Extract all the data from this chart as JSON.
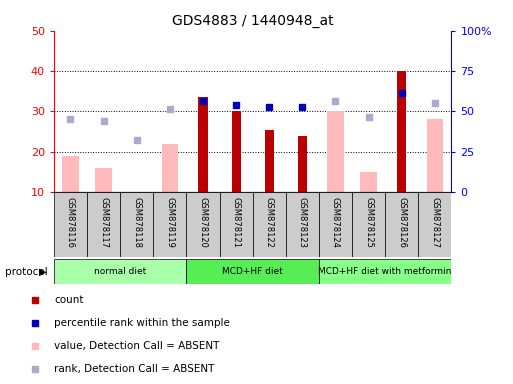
{
  "title": "GDS4883 / 1440948_at",
  "samples": [
    "GSM878116",
    "GSM878117",
    "GSM878118",
    "GSM878119",
    "GSM878120",
    "GSM878121",
    "GSM878122",
    "GSM878123",
    "GSM878124",
    "GSM878125",
    "GSM878126",
    "GSM878127"
  ],
  "count": [
    null,
    null,
    null,
    null,
    33.5,
    30.0,
    25.5,
    24.0,
    null,
    null,
    40.0,
    null
  ],
  "percentile_rank": [
    null,
    null,
    null,
    null,
    32.5,
    31.5,
    31.0,
    31.0,
    null,
    null,
    34.5,
    null
  ],
  "value_absent": [
    19.0,
    16.0,
    null,
    22.0,
    null,
    null,
    null,
    null,
    30.0,
    15.0,
    null,
    28.0
  ],
  "rank_absent": [
    28.0,
    27.5,
    23.0,
    30.5,
    null,
    null,
    null,
    null,
    32.5,
    28.5,
    null,
    32.0
  ],
  "protocols": [
    {
      "label": "normal diet",
      "start": 0,
      "end": 4,
      "color": "#aaffaa"
    },
    {
      "label": "MCD+HF diet",
      "start": 4,
      "end": 8,
      "color": "#55ee55"
    },
    {
      "label": "MCD+HF diet with metformin",
      "start": 8,
      "end": 12,
      "color": "#88ff88"
    }
  ],
  "ylim_left": [
    10,
    50
  ],
  "ylim_right": [
    0,
    100
  ],
  "yticks_left": [
    10,
    20,
    30,
    40,
    50
  ],
  "yticks_right": [
    0,
    25,
    50,
    75,
    100
  ],
  "yticklabels_right": [
    "0",
    "25",
    "50",
    "75",
    "100%"
  ],
  "color_count": "#bb0000",
  "color_percentile": "#0000bb",
  "color_value_absent": "#ffbbbb",
  "color_rank_absent": "#aaaacc",
  "bar_width": 0.5,
  "grid_color": "black",
  "bg_color": "#ffffff",
  "sample_bg_color": "#cccccc",
  "legend_items": [
    {
      "color": "#bb0000",
      "label": "count"
    },
    {
      "color": "#0000bb",
      "label": "percentile rank within the sample"
    },
    {
      "color": "#ffbbbb",
      "label": "value, Detection Call = ABSENT"
    },
    {
      "color": "#aaaacc",
      "label": "rank, Detection Call = ABSENT"
    }
  ]
}
